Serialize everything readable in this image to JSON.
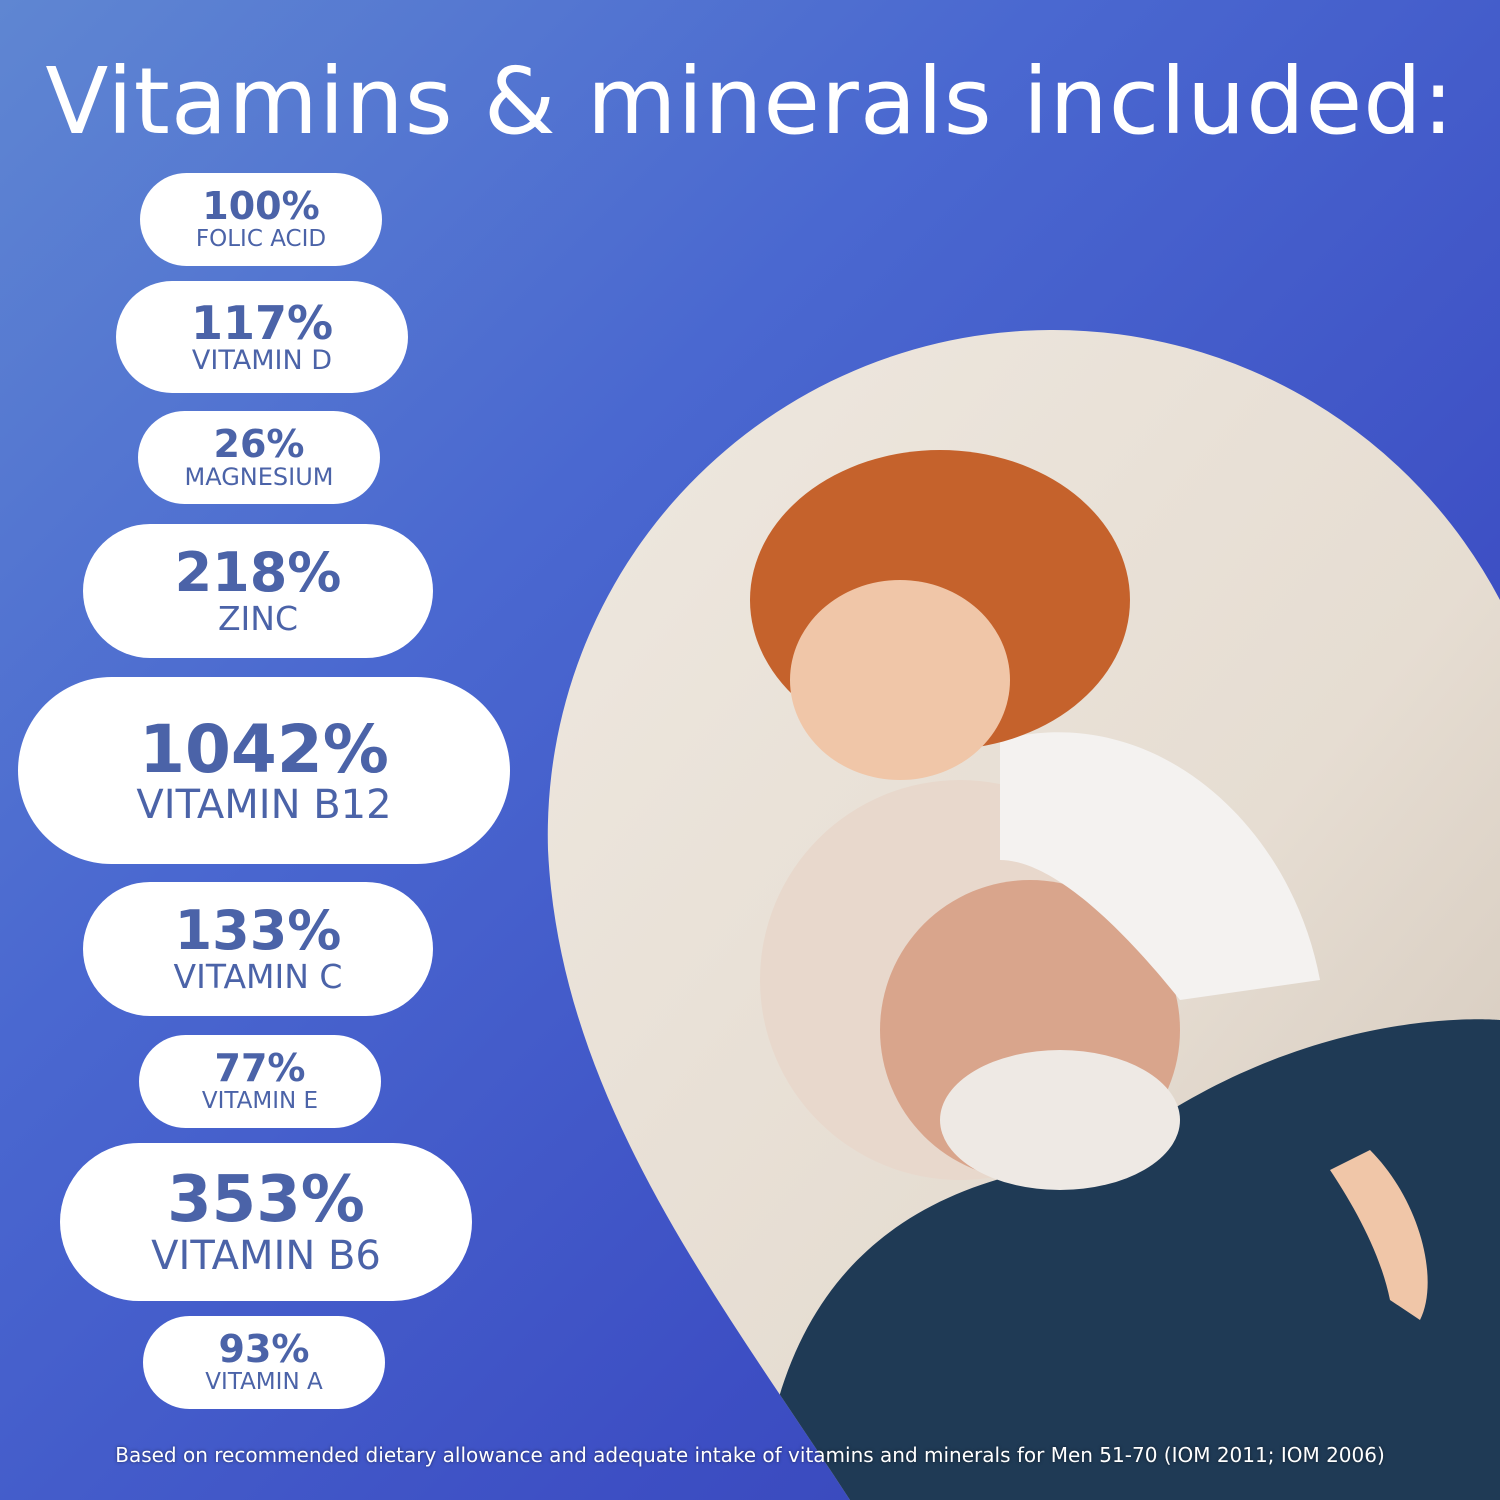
{
  "title": "Vitamins & minerals included:",
  "nutrients": [
    {
      "percent": "100%",
      "name": "FOLIC ACID"
    },
    {
      "percent": "117%",
      "name": "VITAMIN D"
    },
    {
      "percent": "26%",
      "name": "MAGNESIUM"
    },
    {
      "percent": "218%",
      "name": "ZINC"
    },
    {
      "percent": "1042%",
      "name": "VITAMIN B12"
    },
    {
      "percent": "133%",
      "name": "VITAMIN C"
    },
    {
      "percent": "77%",
      "name": "VITAMIN E"
    },
    {
      "percent": "353%",
      "name": "VITAMIN B6"
    },
    {
      "percent": "93%",
      "name": "VITAMIN A"
    }
  ],
  "footer": "Based on recommended dietary allowance and adequate intake of vitamins and minerals for Men 51-70 (IOM 2011; IOM 2006)",
  "colors": {
    "background": "#4a68d0",
    "pill": "#ffffff",
    "pill_text": "#4b63a8"
  }
}
